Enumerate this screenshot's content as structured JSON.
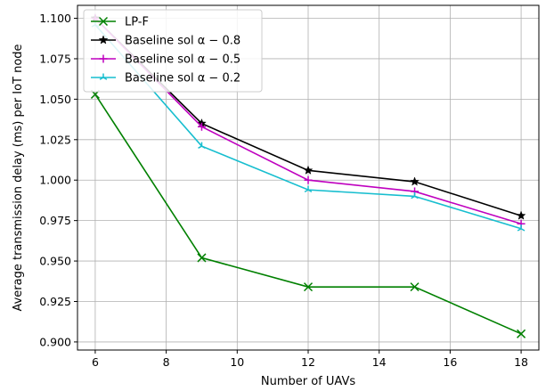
{
  "chart_data": {
    "type": "line",
    "xlabel": "Number of UAVs",
    "ylabel": "Average transmission delay (ms) per IoT node",
    "xlim": [
      5.5,
      18.5
    ],
    "ylim": [
      0.895,
      1.108
    ],
    "x_ticks": [
      6,
      8,
      10,
      12,
      14,
      16,
      18
    ],
    "x_tick_labels": [
      "6",
      "8",
      "10",
      "12",
      "14",
      "16",
      "18"
    ],
    "y_ticks": [
      0.9,
      0.925,
      0.95,
      0.975,
      1.0,
      1.025,
      1.05,
      1.075,
      1.1
    ],
    "y_tick_labels": [
      "0.900",
      "0.925",
      "0.950",
      "0.975",
      "1.000",
      "1.025",
      "1.050",
      "1.075",
      "1.100"
    ],
    "grid": true,
    "legend_position": "top-left",
    "series": [
      {
        "name": "LP-F",
        "color": "#008000",
        "marker": "x",
        "x": [
          6,
          9,
          12,
          15,
          18
        ],
        "y": [
          1.053,
          0.952,
          0.934,
          0.934,
          0.905
        ]
      },
      {
        "name": "Baseline sol α − 0.8",
        "color": "#000000",
        "marker": "star",
        "x": [
          6,
          9,
          12,
          15,
          18
        ],
        "y": [
          1.1,
          1.035,
          1.006,
          0.999,
          0.978
        ]
      },
      {
        "name": "Baseline sol α − 0.5",
        "color": "#bf00bf",
        "marker": "plus",
        "x": [
          6,
          9,
          12,
          15,
          18
        ],
        "y": [
          1.1,
          1.033,
          1.0,
          0.993,
          0.973
        ]
      },
      {
        "name": "Baseline sol α − 0.2",
        "color": "#17becf",
        "marker": "tri",
        "x": [
          6,
          9,
          12,
          15,
          18
        ],
        "y": [
          1.096,
          1.021,
          0.994,
          0.99,
          0.97
        ]
      }
    ]
  }
}
